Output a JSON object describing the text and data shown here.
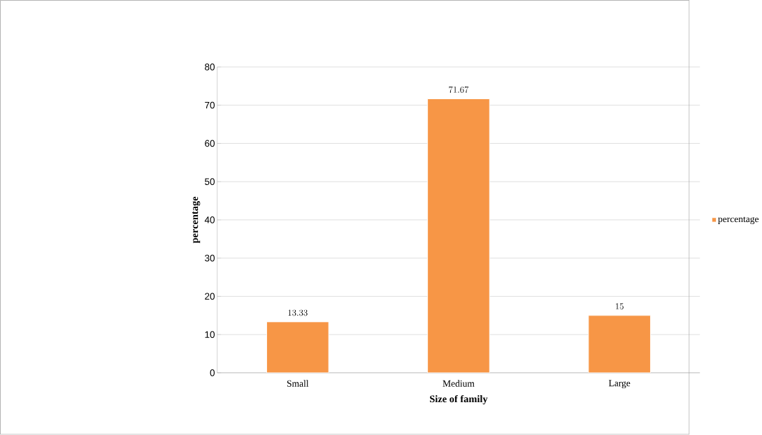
{
  "chart_data": {
    "type": "bar",
    "xlabel": "Size of family",
    "ylabel": "percentage",
    "categories": [
      "Small",
      "Medium",
      "Large"
    ],
    "series": [
      {
        "name": "percentage",
        "color": "#f79646",
        "values": [
          13.33,
          71.67,
          15
        ]
      }
    ],
    "ylim": [
      0,
      80
    ],
    "yticks": [
      0,
      10,
      20,
      30,
      40,
      50,
      60,
      70,
      80
    ],
    "grid": "y",
    "legend": "right",
    "data_labels": true
  }
}
